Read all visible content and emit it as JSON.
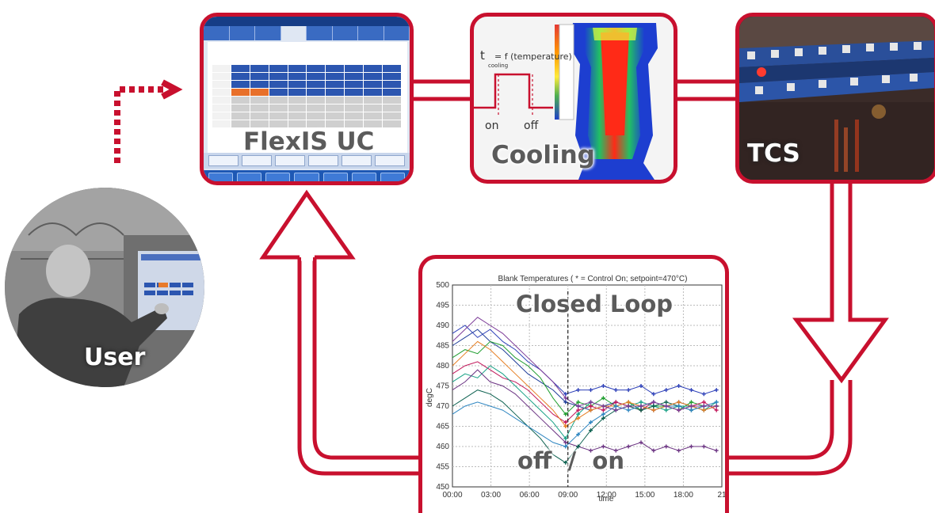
{
  "labels": {
    "user": "User",
    "flexis": "FlexIS UC",
    "cooling": "Cooling",
    "tcs": "TCS",
    "closed_loop": "Closed Loop",
    "off_on": "off  /  on"
  },
  "cooling": {
    "t": "t",
    "t_sub": "cooling",
    "formula": "= f (temperature)",
    "on": "on",
    "off": "off"
  },
  "colors": {
    "frame": "#c8102e",
    "arrow": "#c8102e",
    "label_gray": "#5b5b5b"
  },
  "chart_data": {
    "type": "line",
    "title": "Blank Temperatures ( * = Control On; setpoint=470°C)",
    "xlabel": "time",
    "ylabel": "degC",
    "ylim": [
      450,
      500
    ],
    "yticks": [
      "450",
      "455",
      "460",
      "465",
      "470",
      "475",
      "480",
      "485",
      "490",
      "495",
      "500"
    ],
    "xticks": [
      "00:00",
      "03:00",
      "06:00",
      "09:00",
      "12:00",
      "15:00",
      "18:00",
      "21"
    ],
    "grid": true,
    "control_on_time": "09:00",
    "setpoint": 470,
    "series": [
      {
        "values": [
          485,
          487,
          489,
          486,
          484,
          481,
          478,
          476,
          474,
          471,
          470,
          469,
          470,
          471,
          470,
          470,
          469,
          470,
          471,
          470,
          469,
          470
        ],
        "color": "#1f3d99"
      },
      {
        "values": [
          482,
          484,
          483,
          486,
          485,
          482,
          480,
          477,
          472,
          468,
          471,
          470,
          472,
          470,
          471,
          469,
          470,
          470,
          469,
          471,
          470,
          470
        ],
        "color": "#1f9e2f"
      },
      {
        "values": [
          488,
          490,
          487,
          489,
          486,
          484,
          481,
          479,
          476,
          473,
          474,
          474,
          475,
          474,
          474,
          475,
          473,
          474,
          475,
          474,
          473,
          474
        ],
        "color": "#2c3fb8"
      },
      {
        "values": [
          478,
          480,
          481,
          479,
          477,
          476,
          474,
          471,
          468,
          466,
          469,
          470,
          469,
          471,
          470,
          469,
          471,
          470,
          469,
          470,
          471,
          469
        ],
        "color": "#c2185b"
      },
      {
        "values": [
          476,
          478,
          477,
          480,
          478,
          475,
          472,
          469,
          466,
          462,
          468,
          471,
          470,
          469,
          470,
          471,
          470,
          469,
          470,
          470,
          469,
          471
        ],
        "color": "#16a085"
      },
      {
        "values": [
          474,
          476,
          479,
          476,
          475,
          473,
          470,
          467,
          464,
          461,
          460,
          459,
          460,
          459,
          460,
          461,
          459,
          460,
          459,
          460,
          460,
          459
        ],
        "color": "#6c3483"
      },
      {
        "values": [
          470,
          472,
          474,
          473,
          471,
          468,
          465,
          462,
          458,
          456,
          460,
          464,
          467,
          469,
          470,
          469,
          470,
          471,
          470,
          469,
          470,
          470
        ],
        "color": "#0e6251"
      },
      {
        "values": [
          480,
          483,
          486,
          484,
          481,
          478,
          475,
          472,
          469,
          465,
          467,
          469,
          470,
          470,
          471,
          470,
          469,
          470,
          471,
          470,
          469,
          470
        ],
        "color": "#e67e22"
      },
      {
        "values": [
          468,
          470,
          471,
          470,
          469,
          467,
          465,
          463,
          461,
          460,
          463,
          466,
          468,
          470,
          469,
          470,
          471,
          470,
          470,
          469,
          470,
          471
        ],
        "color": "#2e86c1"
      },
      {
        "values": [
          486,
          489,
          492,
          490,
          488,
          485,
          482,
          479,
          476,
          472,
          470,
          471,
          470,
          469,
          470,
          470,
          471,
          470,
          469,
          470,
          470,
          470
        ],
        "color": "#7d3c98"
      }
    ]
  }
}
